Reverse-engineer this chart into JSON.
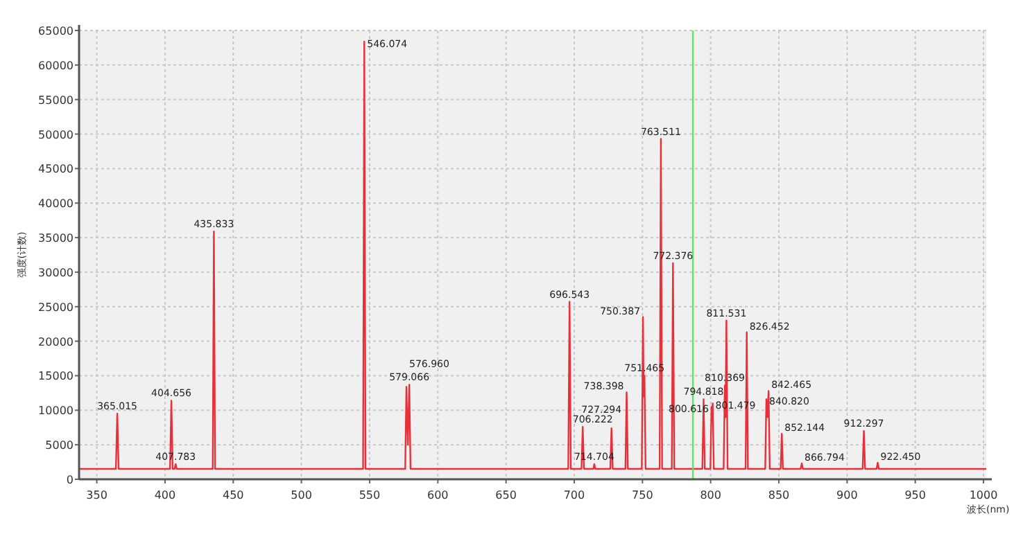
{
  "chart_data": {
    "type": "line",
    "xlabel": "波长(nm)",
    "ylabel": "强度(计数)",
    "xlim": [
      337,
      1002
    ],
    "ylim": [
      0,
      65000
    ],
    "xticks": [
      350,
      400,
      450,
      500,
      550,
      600,
      650,
      700,
      750,
      800,
      850,
      900,
      950,
      1000
    ],
    "yticks": [
      0,
      5000,
      10000,
      15000,
      20000,
      25000,
      30000,
      35000,
      40000,
      45000,
      50000,
      55000,
      60000,
      65000
    ],
    "grid": true,
    "marker": "none",
    "line_style": "solid",
    "ref_lines": [
      {
        "axis": "x",
        "value": 787,
        "color": "#66dd66"
      }
    ],
    "series": [
      {
        "color": "#e8303a",
        "x": [
          337,
          364,
          365.015,
          366,
          403.7,
          404.656,
          405.6,
          407.0,
          407.783,
          408.6,
          435,
          435.833,
          436.7,
          545.2,
          546.074,
          547,
          576.1,
          576.96,
          578,
          579.066,
          580,
          695.6,
          696.543,
          697.5,
          705.3,
          706.222,
          707.1,
          714,
          714.704,
          715.4,
          726.4,
          727.294,
          728.2,
          737.5,
          738.398,
          739.3,
          749.5,
          750.387,
          750.9,
          751.465,
          752.3,
          762.6,
          763.511,
          764.4,
          771.5,
          772.376,
          773.3,
          793.9,
          794.818,
          795.7,
          799.8,
          800.616,
          801.0,
          801.479,
          802.3,
          809.5,
          810.369,
          810.9,
          811.531,
          812.4,
          825.6,
          826.452,
          827.3,
          840,
          840.82,
          841.6,
          842.465,
          843.3,
          851.3,
          852.144,
          853,
          866,
          866.794,
          867.6,
          911.4,
          912.297,
          913.2,
          921.6,
          922.45,
          923.3,
          1002
        ],
        "values": [
          1500,
          1500,
          9500,
          1500,
          1500,
          11400,
          1500,
          1500,
          2200,
          1500,
          1500,
          35900,
          1500,
          1500,
          63400,
          1500,
          1500,
          13400,
          5000,
          13700,
          1500,
          1500,
          25700,
          1500,
          1500,
          7600,
          1500,
          1500,
          2200,
          1500,
          1500,
          7400,
          1500,
          1500,
          12600,
          1500,
          1500,
          23500,
          12000,
          15000,
          1500,
          1500,
          49300,
          1500,
          1500,
          31300,
          1500,
          1500,
          11600,
          1500,
          1500,
          10500,
          9000,
          11000,
          1500,
          1500,
          13600,
          9000,
          23000,
          1500,
          1500,
          21300,
          1500,
          1500,
          11600,
          9000,
          12800,
          1500,
          1500,
          6600,
          1500,
          1500,
          2300,
          1500,
          1500,
          7000,
          1500,
          1500,
          2400,
          1500,
          1500
        ]
      }
    ],
    "annotations": [
      {
        "text": "365.015",
        "x": 365.015,
        "y": 9500
      },
      {
        "text": "404.656",
        "x": 404.656,
        "y": 11400
      },
      {
        "text": "407.783",
        "x": 407.783,
        "y": 2200
      },
      {
        "text": "435.833",
        "x": 435.833,
        "y": 35900
      },
      {
        "text": "546.074",
        "x": 546.074,
        "y": 63400
      },
      {
        "text": "576.960",
        "x": 576.96,
        "y": 13400
      },
      {
        "text": "579.066",
        "x": 579.066,
        "y": 13700
      },
      {
        "text": "696.543",
        "x": 696.543,
        "y": 25700
      },
      {
        "text": "706.222",
        "x": 706.222,
        "y": 7600
      },
      {
        "text": "714.704",
        "x": 714.704,
        "y": 2200
      },
      {
        "text": "727.294",
        "x": 727.294,
        "y": 7400
      },
      {
        "text": "738.398",
        "x": 738.398,
        "y": 12600
      },
      {
        "text": "750.387",
        "x": 750.387,
        "y": 23500
      },
      {
        "text": "751.465",
        "x": 751.465,
        "y": 15000
      },
      {
        "text": "763.511",
        "x": 763.511,
        "y": 49300
      },
      {
        "text": "772.376",
        "x": 772.376,
        "y": 31300
      },
      {
        "text": "794.818",
        "x": 794.818,
        "y": 11600
      },
      {
        "text": "800.616",
        "x": 800.616,
        "y": 10500
      },
      {
        "text": "801.479",
        "x": 801.479,
        "y": 11000
      },
      {
        "text": "810.369",
        "x": 810.369,
        "y": 13600
      },
      {
        "text": "811.531",
        "x": 811.531,
        "y": 23000
      },
      {
        "text": "826.452",
        "x": 826.452,
        "y": 21300
      },
      {
        "text": "840.820",
        "x": 840.82,
        "y": 11600
      },
      {
        "text": "842.465",
        "x": 842.465,
        "y": 12800
      },
      {
        "text": "852.144",
        "x": 852.144,
        "y": 6600
      },
      {
        "text": "866.794",
        "x": 866.794,
        "y": 2300
      },
      {
        "text": "912.297",
        "x": 912.297,
        "y": 7000
      },
      {
        "text": "922.450",
        "x": 922.45,
        "y": 2400
      }
    ]
  }
}
